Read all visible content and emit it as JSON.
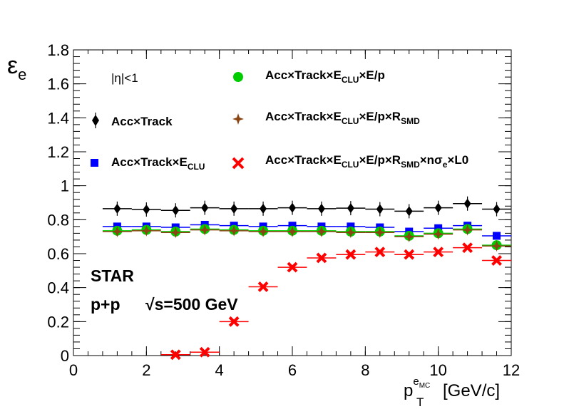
{
  "chart_data": {
    "type": "scatter",
    "title": "",
    "ylabel": "ε_e",
    "xlabel": "p_T^{e_MC} [GeV/c]",
    "xlim": [
      0,
      12
    ],
    "ylim": [
      0,
      1.8
    ],
    "x_ticks": [
      "0",
      "2",
      "4",
      "6",
      "8",
      "10",
      "12"
    ],
    "y_ticks": [
      "0",
      "0.2",
      "0.4",
      "0.6",
      "0.8",
      "1",
      "1.2",
      "1.4",
      "1.6",
      "1.8"
    ],
    "eta_cut": "|η|<1",
    "annotation_experiment": "STAR",
    "annotation_system": "p+p",
    "annotation_energy": "√s=500 GeV",
    "x": [
      1.2,
      2.0,
      2.8,
      3.6,
      4.4,
      5.2,
      6.0,
      6.8,
      7.6,
      8.4,
      9.2,
      10.0,
      10.8,
      11.6
    ],
    "x_err": [
      0.4,
      0.4,
      0.4,
      0.4,
      0.4,
      0.4,
      0.4,
      0.4,
      0.4,
      0.4,
      0.4,
      0.4,
      0.4,
      0.4
    ],
    "series": [
      {
        "name": "Acc×Track",
        "marker": "diamond",
        "color": "#000000",
        "values": [
          0.865,
          0.86,
          0.855,
          0.87,
          0.865,
          0.865,
          0.87,
          0.865,
          0.868,
          0.862,
          0.85,
          0.87,
          0.895,
          0.862
        ]
      },
      {
        "name": "Acc×Track×E_CLU",
        "marker": "square",
        "color": "#0000ff",
        "values": [
          0.76,
          0.76,
          0.755,
          0.77,
          0.765,
          0.76,
          0.765,
          0.76,
          0.76,
          0.755,
          0.73,
          0.75,
          0.765,
          0.705
        ]
      },
      {
        "name": "Acc×Track×E_CLU×E/p",
        "marker": "circle",
        "color": "#00cc00",
        "values": [
          0.735,
          0.74,
          0.73,
          0.745,
          0.74,
          0.735,
          0.735,
          0.735,
          0.73,
          0.73,
          0.705,
          0.72,
          0.745,
          0.65
        ]
      },
      {
        "name": "Acc×Track×E_CLU×E/p×R_SMD",
        "marker": "star",
        "color": "#8b4513",
        "values": [
          0.73,
          0.735,
          0.725,
          0.74,
          0.735,
          0.73,
          0.73,
          0.73,
          0.725,
          0.725,
          0.7,
          0.715,
          0.74,
          0.645
        ]
      },
      {
        "name": "Acc×Track×E_CLU×E/p×R_SMD×nσ_e×L0",
        "marker": "x",
        "color": "#ff0000",
        "values": [
          null,
          null,
          0.005,
          0.02,
          0.2,
          0.405,
          0.52,
          0.575,
          0.595,
          0.61,
          0.595,
          0.61,
          0.635,
          0.56
        ]
      }
    ],
    "legend": {
      "eta_cut": "|η|<1",
      "s1_base": "Acc×Track",
      "s2_base": "Acc×Track×E",
      "s2_sub": "CLU",
      "s3_base": "Acc×Track×E",
      "s3_sub": "CLU",
      "s3_tail": "×E/p",
      "s4_base": "Acc×Track×E",
      "s4_sub": "CLU",
      "s4_mid": "×E/p×R",
      "s4_sub2": "SMD",
      "s5_base": "Acc×Track×E",
      "s5_sub": "CLU",
      "s5_mid": "×E/p×R",
      "s5_sub2": "SMD",
      "s5_mid2": "×nσ",
      "s5_sub3": "e",
      "s5_tail": "×L0"
    },
    "ylabel_parts": {
      "main": "ε",
      "sub": "e"
    },
    "xlabel_parts": {
      "main": "p",
      "sub": "T",
      "sup": "e",
      "supsub": "MC",
      "unit": "[GeV/c]"
    }
  }
}
